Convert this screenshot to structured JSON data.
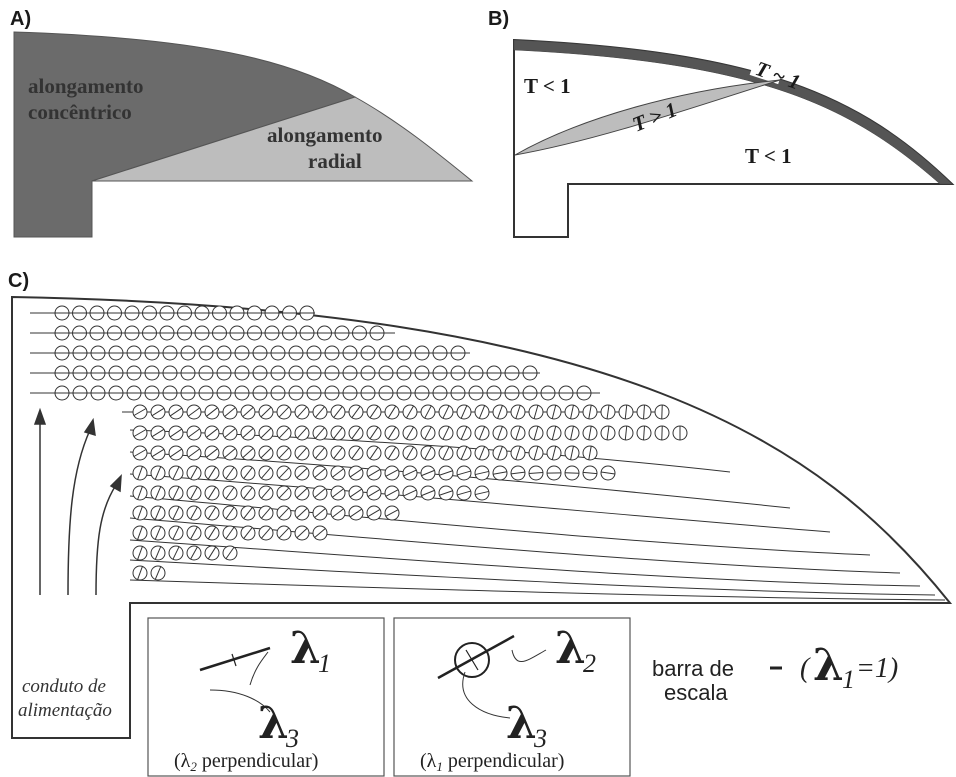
{
  "panels": {
    "a": {
      "label": "A)",
      "concentric_line1": "alongamento",
      "concentric_line2": "concêntrico",
      "radial_line1": "alongamento",
      "radial_line2": "radial",
      "colors": {
        "concentric": "#6b6b6b",
        "radial": "#bdbdbd"
      }
    },
    "b": {
      "label": "B)",
      "t_upper_left": "T < 1",
      "t_greater": "T > 1",
      "t_approx": "T ~ 1",
      "t_lower": "T < 1",
      "colors": {
        "rim": "#555555",
        "lens": "#bdbdbd"
      }
    },
    "c": {
      "label": "C)",
      "feed_line1": "conduto de",
      "feed_line2": "alimentação",
      "legend_left": {
        "lambda_top": "λ",
        "lambda_top_sub": "1",
        "lambda_bottom": "λ",
        "lambda_bottom_sub": "3",
        "caption_open": "(λ",
        "caption_sub": "2",
        "caption_rest": " perpendicular)"
      },
      "legend_right": {
        "lambda_top": "λ",
        "lambda_top_sub": "2",
        "lambda_bottom": "λ",
        "lambda_bottom_sub": "3",
        "caption_open": "(λ",
        "caption_sub": "1",
        "caption_rest": " perpendicular)"
      },
      "scale_bar": {
        "line1": "barra de",
        "line2": "escala",
        "eq_open": "(",
        "eq_lambda": "λ",
        "eq_sub": "1",
        "eq_value": " =1)"
      }
    }
  }
}
